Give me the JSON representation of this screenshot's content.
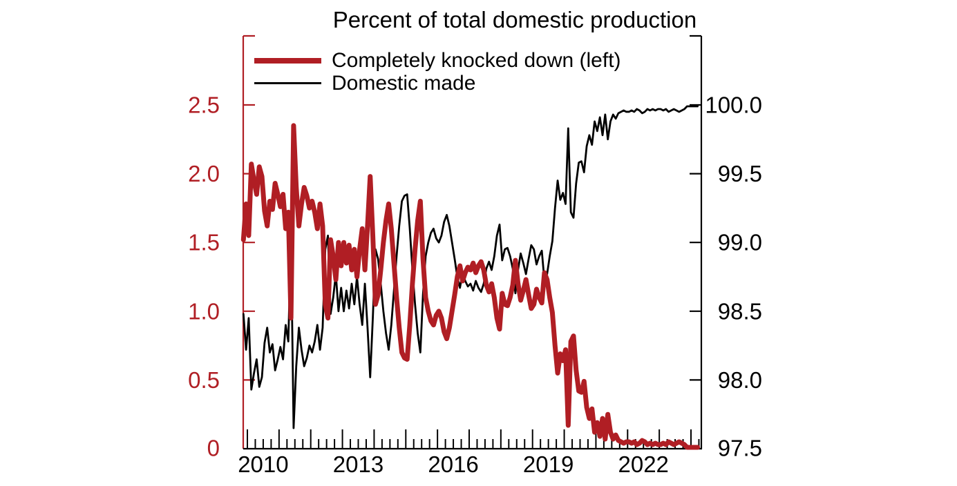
{
  "title": "Percent of total domestic production",
  "legend": [
    {
      "label": "Completely knocked down (left)",
      "color": "#B01E24",
      "style": "thick-line"
    },
    {
      "label": "Domestic made",
      "color": "#000000",
      "style": "thin-line"
    }
  ],
  "left_axis": {
    "color": "#B01E24",
    "labels": [
      "2.5",
      "2.0",
      "1.5",
      "1.0",
      "0.5",
      "0"
    ],
    "tick_values": [
      2.5,
      2.0,
      1.5,
      1.0,
      0.5,
      0
    ],
    "min": 0,
    "max": 2.5
  },
  "right_axis": {
    "color": "#000000",
    "labels": [
      "100.0",
      "99.5",
      "99.0",
      "98.5",
      "98.0",
      "97.5"
    ],
    "tick_values": [
      100.0,
      99.5,
      99.0,
      98.5,
      98.0,
      97.5
    ],
    "min": 97.5,
    "max": 100.0
  },
  "x_axis": {
    "labels": [
      "2010",
      "2013",
      "2016",
      "2019",
      "2022"
    ],
    "label_years": [
      2010,
      2013,
      2016,
      2019,
      2022
    ],
    "major_tick_years": [
      2010,
      2011,
      2012,
      2013,
      2014,
      2015,
      2016,
      2017,
      2018,
      2019,
      2020,
      2021,
      2022,
      2023,
      2024
    ],
    "minor_ticks": "quarterly"
  },
  "chart_data": {
    "type": "line",
    "title": "Percent of total domestic production",
    "frequency": "monthly",
    "x_start": "2009-11",
    "x_end": "2024-03",
    "x_tick_labels": [
      "2010",
      "2013",
      "2016",
      "2019",
      "2022"
    ],
    "left_ylim": [
      0,
      2.5
    ],
    "right_ylim": [
      97.5,
      100.0
    ],
    "grid": false,
    "legend_position": "top-left-inside",
    "series": [
      {
        "name": "Completely knocked down (left)",
        "axis": "left",
        "color": "#B01E24",
        "line_width": 7,
        "values": [
          1.52,
          1.78,
          1.55,
          2.07,
          1.95,
          1.85,
          2.05,
          1.98,
          1.73,
          1.62,
          1.8,
          1.74,
          1.93,
          1.85,
          1.76,
          1.85,
          1.6,
          1.72,
          0.95,
          2.35,
          1.9,
          1.62,
          1.78,
          1.9,
          1.84,
          1.75,
          1.8,
          1.72,
          1.6,
          1.78,
          1.62,
          1.05,
          0.95,
          1.52,
          1.4,
          1.23,
          1.5,
          1.33,
          1.5,
          1.35,
          1.48,
          1.3,
          1.45,
          1.25,
          1.45,
          1.6,
          1.3,
          1.62,
          1.98,
          1.55,
          1.05,
          1.12,
          1.3,
          1.5,
          1.66,
          1.78,
          1.6,
          1.35,
          1.1,
          0.88,
          0.7,
          0.66,
          0.65,
          0.9,
          1.2,
          1.45,
          1.66,
          1.8,
          1.38,
          1.1,
          1.0,
          0.93,
          0.9,
          0.97,
          1.0,
          0.95,
          0.85,
          0.8,
          0.88,
          1.0,
          1.12,
          1.25,
          1.33,
          1.22,
          1.28,
          1.32,
          1.3,
          1.35,
          1.28,
          1.33,
          1.36,
          1.3,
          1.19,
          1.14,
          1.2,
          1.1,
          0.95,
          0.87,
          1.13,
          1.05,
          1.04,
          1.1,
          1.19,
          1.37,
          1.2,
          1.08,
          1.15,
          1.23,
          1.12,
          1.02,
          1.05,
          1.16,
          1.1,
          1.06,
          1.28,
          1.23,
          1.1,
          0.99,
          0.75,
          0.55,
          0.69,
          0.64,
          0.72,
          0.17,
          0.78,
          0.82,
          0.57,
          0.42,
          0.41,
          0.49,
          0.3,
          0.22,
          0.29,
          0.12,
          0.19,
          0.09,
          0.22,
          0.07,
          0.25,
          0.12,
          0.07,
          0.1,
          0.06,
          0.05,
          0.04,
          0.05,
          0.05,
          0.04,
          0.05,
          0.03,
          0.04,
          0.06,
          0.05,
          0.03,
          0.04,
          0.03,
          0.04,
          0.03,
          0.03,
          0.04,
          0.03,
          0.05,
          0.04,
          0.03,
          0.04,
          0.05,
          0.04,
          0.03,
          0.01,
          0.01,
          0.01,
          0.01,
          0.01
        ]
      },
      {
        "name": "Domestic made",
        "axis": "right",
        "color": "#000000",
        "line_width": 2.8,
        "values": [
          98.48,
          98.22,
          98.45,
          97.93,
          98.05,
          98.15,
          97.95,
          98.02,
          98.27,
          98.38,
          98.2,
          98.26,
          98.07,
          98.15,
          98.24,
          98.15,
          98.4,
          98.28,
          99.05,
          97.65,
          98.1,
          98.38,
          98.22,
          98.1,
          98.16,
          98.25,
          98.2,
          98.28,
          98.4,
          98.22,
          98.38,
          98.95,
          99.05,
          98.48,
          98.6,
          98.77,
          98.5,
          98.67,
          98.5,
          98.65,
          98.52,
          98.7,
          98.55,
          98.75,
          98.55,
          98.4,
          98.7,
          98.38,
          98.02,
          98.45,
          98.95,
          98.88,
          98.7,
          98.5,
          98.34,
          98.22,
          98.4,
          98.65,
          98.9,
          99.12,
          99.3,
          99.34,
          99.35,
          99.1,
          98.8,
          98.55,
          98.34,
          98.2,
          98.62,
          98.9,
          99.0,
          99.07,
          99.1,
          99.03,
          99.0,
          99.05,
          99.15,
          99.2,
          99.12,
          99.0,
          98.88,
          98.75,
          98.67,
          98.78,
          98.72,
          98.68,
          98.7,
          98.65,
          98.72,
          98.67,
          98.64,
          98.7,
          98.81,
          98.86,
          98.8,
          98.9,
          99.05,
          99.13,
          98.87,
          98.95,
          98.96,
          98.9,
          98.81,
          98.63,
          98.8,
          98.92,
          98.85,
          98.77,
          98.88,
          98.98,
          98.95,
          98.84,
          98.9,
          98.94,
          98.72,
          98.77,
          98.9,
          99.01,
          99.25,
          99.45,
          99.31,
          99.36,
          99.28,
          99.83,
          99.22,
          99.18,
          99.43,
          99.58,
          99.59,
          99.51,
          99.7,
          99.78,
          99.71,
          99.88,
          99.81,
          99.91,
          99.78,
          99.93,
          99.75,
          99.88,
          99.93,
          99.9,
          99.94,
          99.95,
          99.96,
          99.95,
          99.95,
          99.96,
          99.95,
          99.97,
          99.96,
          99.94,
          99.95,
          99.97,
          99.96,
          99.97,
          99.96,
          99.97,
          99.97,
          99.96,
          99.97,
          99.95,
          99.96,
          99.97,
          99.96,
          99.95,
          99.96,
          99.97,
          99.99,
          99.99,
          99.99,
          99.99,
          99.99
        ]
      }
    ]
  }
}
